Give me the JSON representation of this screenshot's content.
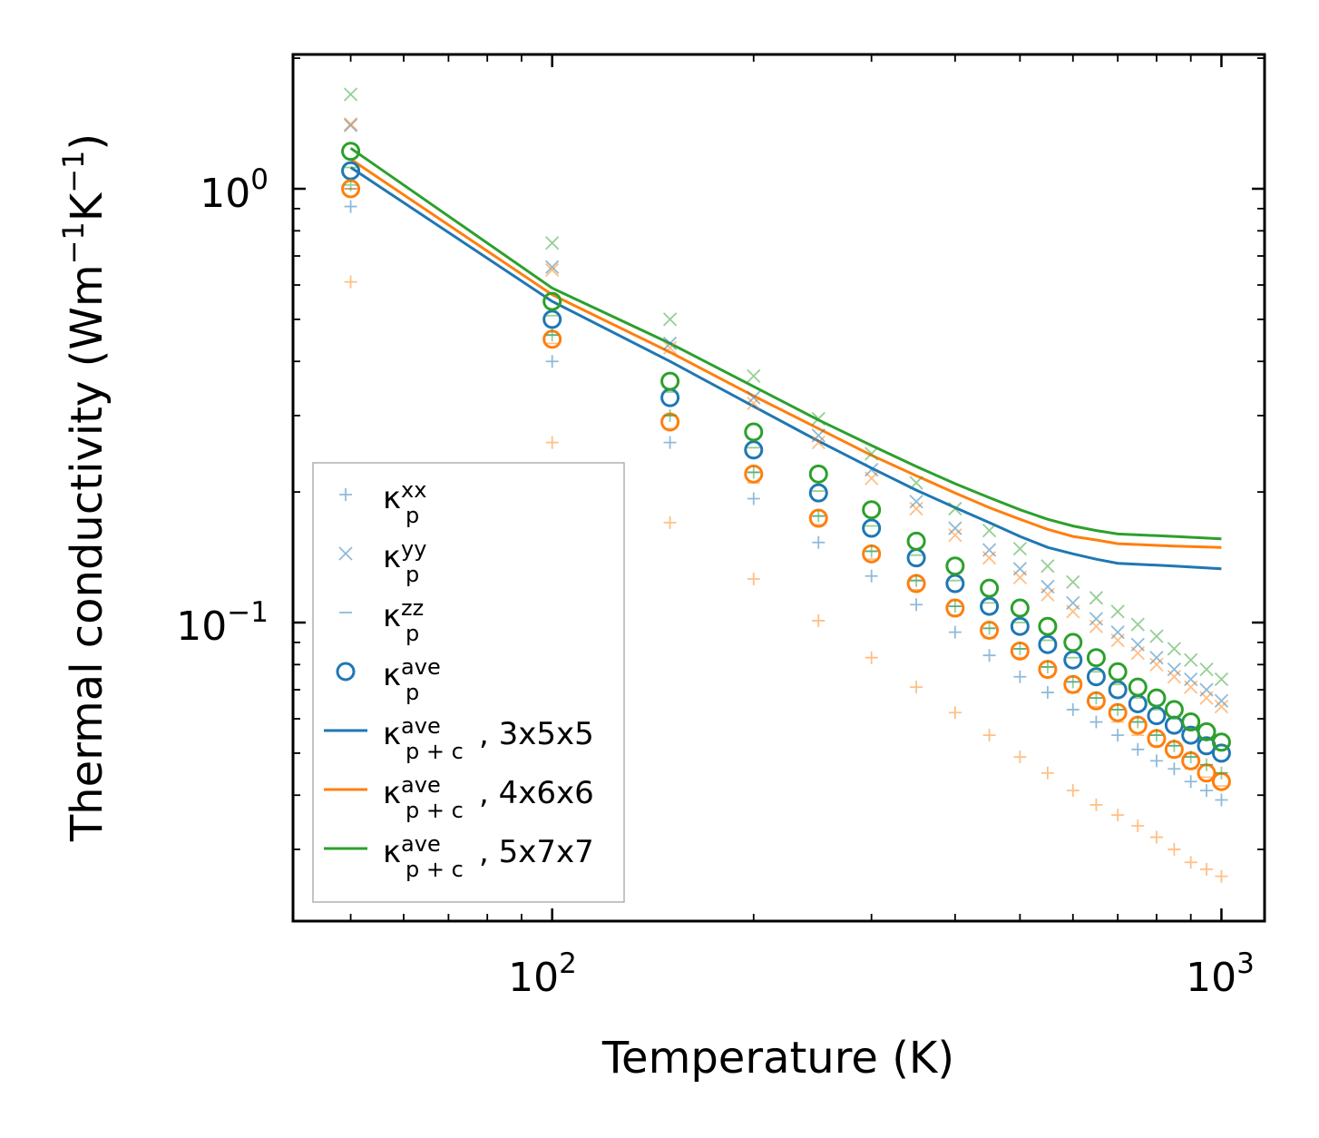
{
  "chart_data": {
    "type": "scatter+line",
    "xscale": "log",
    "yscale": "log",
    "xlim": [
      41,
      1160
    ],
    "ylim": [
      0.0205,
      2.04
    ],
    "xlabel": "Temperature (K)",
    "ylabel": {
      "base": "Thermal conductivity (Wm",
      "exp1": "−1",
      "mid": "K",
      "exp2": "−1",
      "end": ")"
    },
    "x_ticks": [
      {
        "base": "10",
        "exp": "2",
        "value": 100
      },
      {
        "base": "10",
        "exp": "3",
        "value": 1000
      }
    ],
    "y_ticks": [
      {
        "base": "10",
        "exp": "−1",
        "value": 0.1
      },
      {
        "base": "10",
        "exp": "0",
        "value": 1
      }
    ],
    "temperatures": [
      50,
      100,
      150,
      200,
      250,
      300,
      350,
      400,
      450,
      500,
      550,
      600,
      650,
      700,
      750,
      800,
      850,
      900,
      950,
      1000
    ],
    "colors": {
      "blue": "#1f77b4",
      "orange": "#ff7f0e",
      "green": "#2ca02c"
    },
    "legend": [
      {
        "marker": "plus",
        "kappa": "κ",
        "sub": "p",
        "sup": "xx",
        "rest": ""
      },
      {
        "marker": "cross",
        "kappa": "κ",
        "sub": "p",
        "sup": "yy",
        "rest": ""
      },
      {
        "marker": "dash",
        "kappa": "κ",
        "sub": "p",
        "sup": "zz",
        "rest": ""
      },
      {
        "marker": "circle",
        "kappa": "κ",
        "sub": "p",
        "sup": "ave",
        "rest": ""
      },
      {
        "marker": "line",
        "color": "blue",
        "kappa": "κ",
        "sub": "p + c",
        "sup": "ave",
        "rest": ", 3x5x5"
      },
      {
        "marker": "line",
        "color": "orange",
        "kappa": "κ",
        "sub": "p + c",
        "sup": "ave",
        "rest": ", 4x6x6"
      },
      {
        "marker": "line",
        "color": "green",
        "kappa": "κ",
        "sub": "p + c",
        "sup": "ave",
        "rest": ", 5x7x7"
      }
    ],
    "series": [
      {
        "name": "κp,xx 3x5x5",
        "color": "blue",
        "marker": "plus",
        "values": [
          0.91,
          0.4,
          0.26,
          0.193,
          0.153,
          0.128,
          0.11,
          0.095,
          0.084,
          0.075,
          0.069,
          0.063,
          0.059,
          0.055,
          0.051,
          0.048,
          0.046,
          0.043,
          0.041,
          0.039
        ]
      },
      {
        "name": "κp,yy 3x5x5",
        "color": "blue",
        "marker": "cross",
        "values": [
          1.4,
          0.66,
          0.44,
          0.33,
          0.27,
          0.225,
          0.19,
          0.165,
          0.147,
          0.133,
          0.121,
          0.111,
          0.102,
          0.095,
          0.089,
          0.083,
          0.078,
          0.074,
          0.07,
          0.066
        ]
      },
      {
        "name": "κp,zz 3x5x5",
        "color": "blue",
        "marker": "dash",
        "values": [
          1.0,
          0.46,
          0.3,
          0.222,
          0.176,
          0.146,
          0.125,
          0.109,
          0.097,
          0.087,
          0.079,
          0.073,
          0.067,
          0.063,
          0.059,
          0.055,
          0.052,
          0.049,
          0.047,
          0.045
        ]
      },
      {
        "name": "κp,ave 3x5x5",
        "color": "blue",
        "marker": "circle",
        "values": [
          1.1,
          0.5,
          0.33,
          0.25,
          0.199,
          0.165,
          0.141,
          0.123,
          0.109,
          0.098,
          0.089,
          0.082,
          0.075,
          0.07,
          0.065,
          0.061,
          0.058,
          0.055,
          0.052,
          0.05
        ]
      },
      {
        "name": "κp,xx 4x6x6",
        "color": "orange",
        "marker": "plus",
        "values": [
          0.61,
          0.26,
          0.17,
          0.126,
          0.101,
          0.083,
          0.071,
          0.062,
          0.055,
          0.049,
          0.045,
          0.041,
          0.038,
          0.036,
          0.034,
          0.032,
          0.03,
          0.028,
          0.027,
          0.026
        ]
      },
      {
        "name": "κp,yy 4x6x6",
        "color": "orange",
        "marker": "cross",
        "values": [
          1.41,
          0.65,
          0.43,
          0.32,
          0.26,
          0.215,
          0.183,
          0.159,
          0.141,
          0.127,
          0.116,
          0.106,
          0.098,
          0.091,
          0.085,
          0.08,
          0.075,
          0.071,
          0.067,
          0.064
        ]
      },
      {
        "name": "κp,zz 4x6x6",
        "color": "orange",
        "marker": "dash",
        "values": [
          1.0,
          0.44,
          0.28,
          0.21,
          0.168,
          0.14,
          0.119,
          0.104,
          0.092,
          0.083,
          0.075,
          0.069,
          0.064,
          0.059,
          0.055,
          0.052,
          0.049,
          0.046,
          0.044,
          0.042
        ]
      },
      {
        "name": "κp,ave 4x6x6",
        "color": "orange",
        "marker": "circle",
        "values": [
          1.0,
          0.45,
          0.29,
          0.22,
          0.174,
          0.144,
          0.123,
          0.108,
          0.096,
          0.086,
          0.078,
          0.072,
          0.066,
          0.062,
          0.058,
          0.054,
          0.051,
          0.048,
          0.045,
          0.043
        ]
      },
      {
        "name": "κp,xx 5x7x7",
        "color": "green",
        "marker": "plus",
        "values": [
          1.02,
          0.46,
          0.3,
          0.222,
          0.176,
          0.146,
          0.125,
          0.109,
          0.097,
          0.087,
          0.079,
          0.073,
          0.067,
          0.063,
          0.059,
          0.055,
          0.052,
          0.049,
          0.047,
          0.045
        ]
      },
      {
        "name": "κp,yy 5x7x7",
        "color": "green",
        "marker": "cross",
        "values": [
          1.65,
          0.75,
          0.5,
          0.37,
          0.295,
          0.245,
          0.21,
          0.183,
          0.163,
          0.148,
          0.135,
          0.124,
          0.114,
          0.106,
          0.099,
          0.093,
          0.087,
          0.082,
          0.078,
          0.074
        ]
      },
      {
        "name": "κp,zz 5x7x7",
        "color": "green",
        "marker": "dash",
        "values": [
          1.12,
          0.51,
          0.34,
          0.253,
          0.201,
          0.167,
          0.143,
          0.125,
          0.111,
          0.1,
          0.091,
          0.083,
          0.077,
          0.072,
          0.067,
          0.063,
          0.06,
          0.057,
          0.054,
          0.052
        ]
      },
      {
        "name": "κp,ave 5x7x7",
        "color": "green",
        "marker": "circle",
        "values": [
          1.22,
          0.55,
          0.36,
          0.275,
          0.22,
          0.182,
          0.154,
          0.135,
          0.12,
          0.108,
          0.098,
          0.09,
          0.083,
          0.077,
          0.071,
          0.067,
          0.063,
          0.059,
          0.056,
          0.053
        ]
      }
    ],
    "lines": [
      {
        "name": "κp+c,ave 3x5x5",
        "color": "blue",
        "values": [
          1.12,
          0.55,
          0.4,
          0.315,
          0.262,
          0.227,
          0.202,
          0.184,
          0.17,
          0.158,
          0.149,
          0.144,
          0.14,
          0.137,
          0.135,
          0.133
        ]
      },
      {
        "name": "κp+c,ave 4x6x6",
        "color": "orange",
        "values": [
          1.17,
          0.57,
          0.42,
          0.333,
          0.28,
          0.243,
          0.218,
          0.199,
          0.184,
          0.173,
          0.164,
          0.158,
          0.155,
          0.152,
          0.15,
          0.149
        ]
      },
      {
        "name": "κp+c,ave 5x7x7",
        "color": "green",
        "values": [
          1.24,
          0.59,
          0.44,
          0.35,
          0.293,
          0.256,
          0.229,
          0.209,
          0.194,
          0.182,
          0.173,
          0.167,
          0.163,
          0.16,
          0.158,
          0.156
        ]
      }
    ],
    "line_x": [
      50,
      100,
      150,
      200,
      250,
      300,
      350,
      400,
      450,
      500,
      550,
      600,
      650,
      700,
      850,
      1000
    ]
  }
}
